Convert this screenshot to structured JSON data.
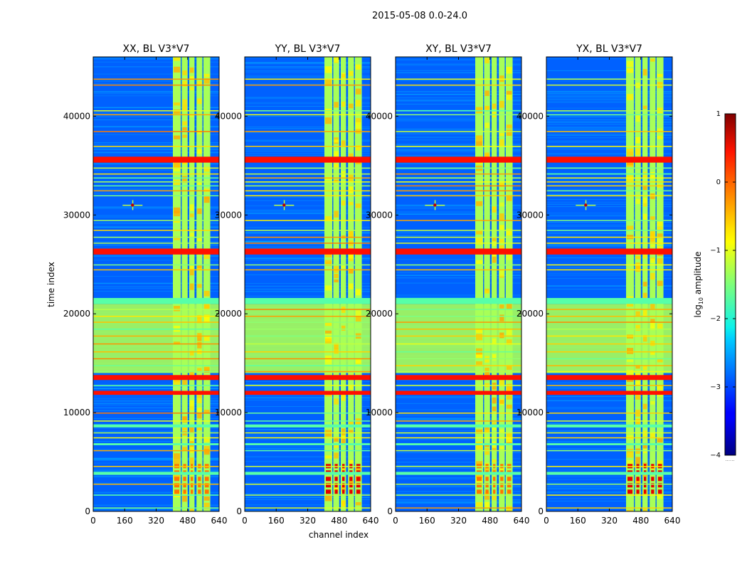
{
  "chart_data": {
    "type": "heatmap",
    "suptitle": "2015-05-08 0.0-24.0",
    "xlabel": "channel index",
    "ylabel": "time index",
    "xlim": [
      0,
      640
    ],
    "ylim": [
      0,
      46000
    ],
    "xticks": [
      "0",
      "160",
      "320",
      "480",
      "640"
    ],
    "yticks": [
      "0",
      "10000",
      "20000",
      "30000",
      "40000"
    ],
    "ytick_values": [
      0,
      10000,
      20000,
      30000,
      40000
    ],
    "xtick_values": [
      0,
      160,
      320,
      480,
      640
    ],
    "colorbar": {
      "label_prefix": "log",
      "label_sub": "10",
      "label_suffix": " amplitude",
      "range": [
        -4,
        1
      ],
      "ticks": [
        "1",
        "0",
        "−1",
        "−2",
        "−3",
        "−4"
      ],
      "tick_values": [
        1,
        0,
        -1,
        -2,
        -3,
        -4
      ],
      "colormap": "jet",
      "extra_text": "......"
    },
    "panels": [
      {
        "title": "XX, BL V3*V7",
        "pol": "XX"
      },
      {
        "title": "YY, BL V3*V7",
        "pol": "YY"
      },
      {
        "title": "XY, BL V3*V7",
        "pol": "XY"
      },
      {
        "title": "YX, BL V3*V7",
        "pol": "YX"
      }
    ],
    "background_level": -2.9,
    "rfi_channel_bands": [
      [
        405,
        445
      ],
      [
        450,
        480
      ],
      [
        488,
        515
      ],
      [
        525,
        555
      ],
      [
        560,
        595
      ]
    ],
    "rfi_band_level": -1.3,
    "flagged_time_bands": [
      {
        "range": [
          35300,
          35900
        ],
        "level": 0.3
      },
      {
        "range": [
          26000,
          26600
        ],
        "level": 0.3
      },
      {
        "range": [
          21000,
          21600
        ],
        "level": -1.7
      },
      {
        "range": [
          13300,
          13800
        ],
        "level": 0.3
      },
      {
        "range": [
          11800,
          12200
        ],
        "level": 0.3
      },
      {
        "range": [
          8500,
          8800
        ],
        "level": -1.7
      },
      {
        "range": [
          6700,
          6900
        ],
        "level": -1.7
      },
      {
        "range": [
          3700,
          4000
        ],
        "level": -1.7
      }
    ],
    "narrow_flag_rows": [
      43800,
      43200,
      40600,
      40200,
      38500,
      37000,
      34800,
      34200,
      33800,
      33400,
      33000,
      32500,
      32000,
      29500,
      28500,
      27800,
      27200,
      25000,
      24500,
      20500,
      19800,
      19200,
      18500,
      17800,
      17000,
      16200,
      15500,
      14800,
      14200,
      12800,
      10000,
      9200,
      8000,
      7500,
      6200,
      4600,
      2800,
      1700,
      400
    ],
    "green_region": [
      14000,
      21000
    ],
    "green_region_level": -1.3,
    "point_source": {
      "channel": 200,
      "time": 31000,
      "level": 0.7
    }
  }
}
